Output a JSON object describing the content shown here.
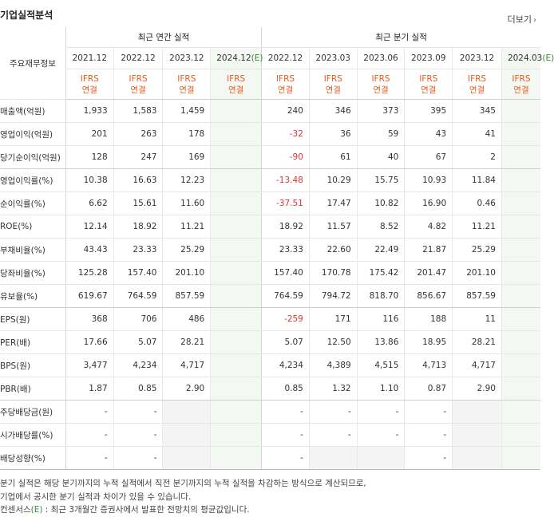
{
  "section": {
    "title": "기업실적분석",
    "more": "더보기"
  },
  "table": {
    "rowhead": "주요재무정보",
    "annual_label": "최근 연간 실적",
    "quarter_label": "최근 분기 실적",
    "annual_years": [
      "2021.12",
      "2022.12",
      "2023.12",
      "2024.12"
    ],
    "quarter_years": [
      "2022.12",
      "2023.03",
      "2023.06",
      "2023.09",
      "2023.12",
      "2024.03"
    ],
    "estimate_suffix": "(E)",
    "ifrs_top": "IFRS",
    "ifrs_bottom": "연결",
    "rows": [
      {
        "label": "매출액(억원)",
        "a": [
          "1,933",
          "1,583",
          "1,459",
          ""
        ],
        "q": [
          "240",
          "346",
          "373",
          "395",
          "345",
          ""
        ]
      },
      {
        "label": "영업이익(억원)",
        "a": [
          "201",
          "263",
          "178",
          ""
        ],
        "q": [
          "-32",
          "36",
          "59",
          "43",
          "41",
          ""
        ]
      },
      {
        "label": "당기순이익(억원)",
        "a": [
          "128",
          "247",
          "169",
          ""
        ],
        "q": [
          "-90",
          "61",
          "40",
          "67",
          "2",
          ""
        ]
      },
      {
        "label": "영업이익률(%)",
        "a": [
          "10.38",
          "16.63",
          "12.23",
          ""
        ],
        "q": [
          "-13.48",
          "10.29",
          "15.75",
          "10.93",
          "11.84",
          ""
        ]
      },
      {
        "label": "순이익률(%)",
        "a": [
          "6.62",
          "15.61",
          "11.60",
          ""
        ],
        "q": [
          "-37.51",
          "17.47",
          "10.82",
          "16.90",
          "0.46",
          ""
        ]
      },
      {
        "label": "ROE(%)",
        "a": [
          "12.14",
          "18.92",
          "11.21",
          ""
        ],
        "q": [
          "18.92",
          "11.57",
          "8.52",
          "4.82",
          "11.21",
          ""
        ]
      },
      {
        "label": "부채비율(%)",
        "a": [
          "43.43",
          "23.33",
          "25.29",
          ""
        ],
        "q": [
          "23.33",
          "22.60",
          "22.49",
          "21.87",
          "25.29",
          ""
        ]
      },
      {
        "label": "당좌비율(%)",
        "a": [
          "125.28",
          "157.40",
          "201.10",
          ""
        ],
        "q": [
          "157.40",
          "170.78",
          "175.42",
          "201.47",
          "201.10",
          ""
        ]
      },
      {
        "label": "유보율(%)",
        "a": [
          "619.67",
          "764.59",
          "857.59",
          ""
        ],
        "q": [
          "764.59",
          "794.72",
          "818.70",
          "856.67",
          "857.59",
          ""
        ]
      },
      {
        "label": "EPS(원)",
        "a": [
          "368",
          "706",
          "486",
          ""
        ],
        "q": [
          "-259",
          "171",
          "116",
          "188",
          "11",
          ""
        ]
      },
      {
        "label": "PER(배)",
        "a": [
          "17.66",
          "5.07",
          "28.21",
          ""
        ],
        "q": [
          "5.07",
          "12.50",
          "13.86",
          "18.95",
          "28.21",
          ""
        ]
      },
      {
        "label": "BPS(원)",
        "a": [
          "3,477",
          "4,234",
          "4,717",
          ""
        ],
        "q": [
          "4,234",
          "4,389",
          "4,515",
          "4,713",
          "4,717",
          ""
        ]
      },
      {
        "label": "PBR(배)",
        "a": [
          "1.87",
          "0.85",
          "2.90",
          ""
        ],
        "q": [
          "0.85",
          "1.32",
          "1.10",
          "0.87",
          "2.90",
          ""
        ]
      },
      {
        "label": "주당배당금(원)",
        "a": [
          "-",
          "-",
          "",
          ""
        ],
        "q": [
          "-",
          "-",
          "-",
          "-",
          "",
          ""
        ]
      },
      {
        "label": "시가배당률(%)",
        "a": [
          "-",
          "-",
          "",
          ""
        ],
        "q": [
          "-",
          "-",
          "-",
          "-",
          "",
          ""
        ]
      },
      {
        "label": "배당성향(%)",
        "a": [
          "-",
          "-",
          "",
          ""
        ],
        "q": [
          "-",
          "",
          "",
          "-",
          "",
          ""
        ]
      }
    ]
  },
  "notes": {
    "line1": "분기 실적은 해당 분기까지의 누적 실적에서 직전 분기까지의 누적 실적을 차감하는 방식으로 계산되므로,",
    "line2": "기업에서 공시한 분기 실적과 차이가 있을 수 있습니다.",
    "line3_prefix": "컨센서스",
    "line3_e": "(E)",
    "line3_rest": " : 최근 3개월간 증권사에서 발표한 전망치의 평균값입니다."
  }
}
